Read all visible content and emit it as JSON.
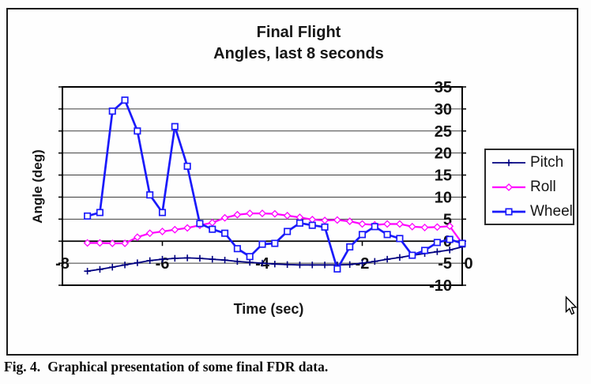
{
  "figure": {
    "caption_label": "Fig. 4.",
    "caption_text": "Graphical presentation of some final FDR data."
  },
  "chart_data": {
    "type": "line",
    "title_lines": [
      "Final Flight",
      "Angles, last 8 seconds"
    ],
    "xlabel": "Time (sec)",
    "ylabel": "Angle (deg)",
    "xlim": [
      -8,
      0
    ],
    "ylim": [
      -10,
      35
    ],
    "x_ticks": [
      -8,
      -6,
      -4,
      -2,
      0
    ],
    "y_ticks": [
      35,
      30,
      25,
      20,
      15,
      10,
      5,
      0,
      -5,
      -10
    ],
    "y_axis_side": "right",
    "grid": "horizontal",
    "legend_position": "right",
    "x_start": -7.5,
    "x_step": 0.25,
    "colors": {
      "pitch": "#000080",
      "roll": "#FF00FF",
      "wheel": "#1A1AFA",
      "gridline": "#3d3d3d",
      "frame": "#000000"
    },
    "series": [
      {
        "name": "Pitch",
        "color": "#000080",
        "marker": "plus",
        "values": [
          -6.8,
          -6.4,
          -5.9,
          -5.4,
          -4.9,
          -4.4,
          -4.1,
          -3.9,
          -3.8,
          -3.9,
          -4.1,
          -4.3,
          -4.6,
          -4.8,
          -5.0,
          -5.2,
          -5.3,
          -5.4,
          -5.4,
          -5.4,
          -5.4,
          -5.3,
          -5.0,
          -4.6,
          -4.1,
          -3.7,
          -3.2,
          -2.8,
          -2.4,
          -2.0,
          -1.3
        ]
      },
      {
        "name": "Roll",
        "color": "#FF00FF",
        "marker": "diamond",
        "values": [
          -0.4,
          -0.4,
          -0.5,
          -0.5,
          0.9,
          1.8,
          2.2,
          2.6,
          3.0,
          3.6,
          4.2,
          5.3,
          6.0,
          6.3,
          6.3,
          6.2,
          5.8,
          5.4,
          4.9,
          4.7,
          4.8,
          4.5,
          3.9,
          3.7,
          3.9,
          3.9,
          3.3,
          3.1,
          3.2,
          3.4,
          -0.5
        ]
      },
      {
        "name": "Wheel",
        "color": "#1A1AFA",
        "marker": "square",
        "values": [
          5.7,
          6.5,
          29.5,
          32,
          25,
          10.5,
          6.5,
          26,
          17,
          4,
          2.7,
          1.8,
          -1.7,
          -3.5,
          -0.7,
          -0.5,
          2.2,
          4.1,
          3.6,
          3.2,
          -6.3,
          -1.3,
          1.5,
          3.3,
          1.5,
          0.6,
          -3.2,
          -2.1,
          -0.3,
          0.4,
          -0.5
        ]
      }
    ]
  }
}
